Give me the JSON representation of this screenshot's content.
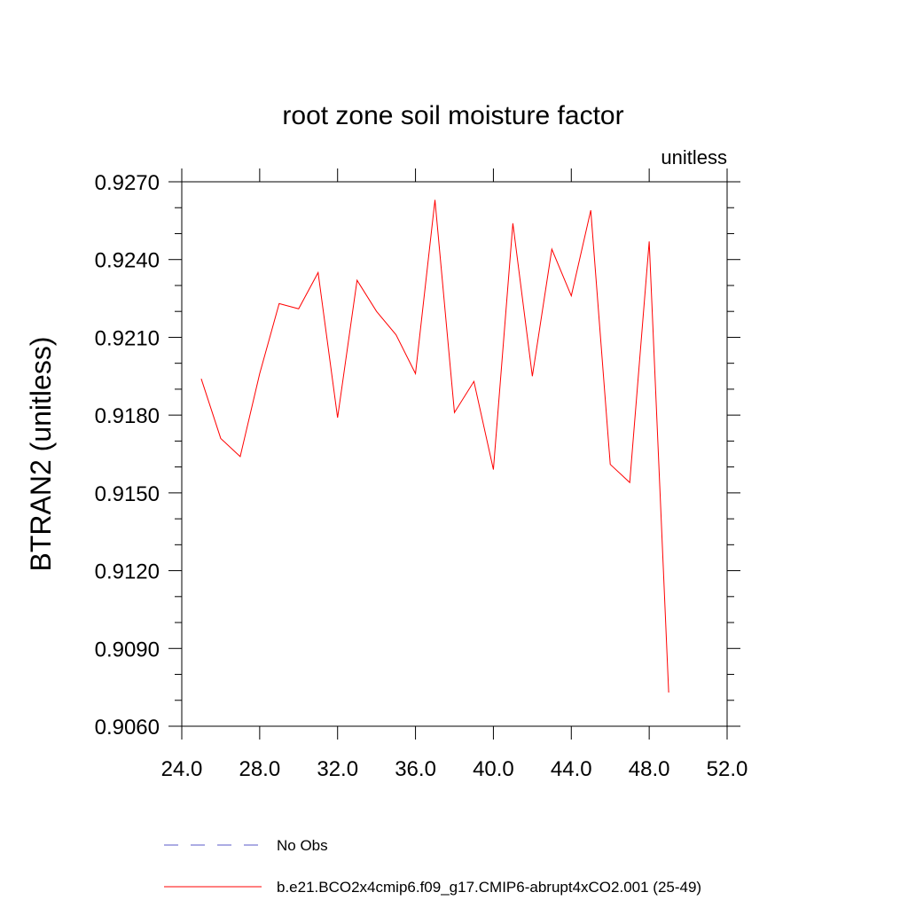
{
  "chart_data": {
    "type": "line",
    "title": "root zone soil moisture factor",
    "units_label": "unitless",
    "ylabel": "BTRAN2  (unitless)",
    "xlabel": "",
    "xlim": [
      24.0,
      52.0
    ],
    "ylim": [
      0.906,
      0.927
    ],
    "x_ticks": [
      "24.0",
      "28.0",
      "32.0",
      "36.0",
      "40.0",
      "44.0",
      "48.0",
      "52.0"
    ],
    "y_ticks": [
      "0.9060",
      "0.9090",
      "0.9120",
      "0.9150",
      "0.9180",
      "0.9210",
      "0.9240",
      "0.9270"
    ],
    "series": [
      {
        "name": "No Obs",
        "color": "#5a5ac8",
        "style": "dashed",
        "x": [],
        "values": []
      },
      {
        "name": "b.e21.BCO2x4cmip6.f09_g17.CMIP6-abrupt4xCO2.001 (25-49)",
        "color": "#ff0000",
        "style": "solid",
        "x": [
          25,
          26,
          27,
          28,
          29,
          30,
          31,
          32,
          33,
          34,
          35,
          36,
          37,
          38,
          39,
          40,
          41,
          42,
          43,
          44,
          45,
          46,
          47,
          48,
          49
        ],
        "values": [
          0.9194,
          0.9171,
          0.9164,
          0.9196,
          0.9223,
          0.9221,
          0.9235,
          0.9179,
          0.9232,
          0.922,
          0.9211,
          0.9196,
          0.9263,
          0.9181,
          0.9193,
          0.9159,
          0.9254,
          0.9195,
          0.9244,
          0.9226,
          0.9259,
          0.9161,
          0.9154,
          0.9247,
          0.9073
        ]
      }
    ],
    "legend": [
      {
        "label": "No Obs"
      },
      {
        "label": "b.e21.BCO2x4cmip6.f09_g17.CMIP6-abrupt4xCO2.001 (25-49)"
      }
    ]
  }
}
